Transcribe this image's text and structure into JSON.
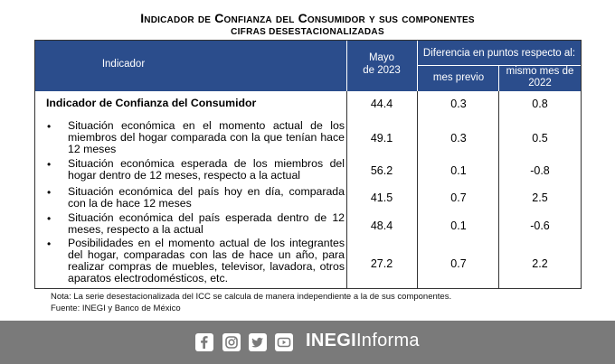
{
  "title": "Indicador de Confianza del Consumidor y sus componentes",
  "subtitle": "CIFRAS DESESTACIONALIZADAS",
  "table": {
    "headers": {
      "indicador": "Indicador",
      "mayo_line1": "Mayo",
      "mayo_line2": "de 2023",
      "diferencia": "Diferencia en puntos respecto al:",
      "mes_previo": "mes previo",
      "mismo_mes_line1": "mismo mes de",
      "mismo_mes_line2": "2022"
    },
    "rows": [
      {
        "label": "Indicador de Confianza del Consumidor",
        "bullet": "",
        "mayo": "44.4",
        "previo": "0.3",
        "mismo": "0.8"
      },
      {
        "label": "Situación económica en el momento actual de los miembros del hogar comparada con la que tenían hace 12 meses",
        "bullet": "•",
        "mayo": "49.1",
        "previo": "0.3",
        "mismo": "0.5"
      },
      {
        "label": "Situación económica esperada de los miembros del hogar dentro de 12 meses, respecto a la actual",
        "bullet": "•",
        "mayo": "56.2",
        "previo": "0.1",
        "mismo": "-0.8"
      },
      {
        "label": "Situación económica del país hoy en día, comparada con la de hace 12 meses",
        "bullet": "•",
        "mayo": "41.5",
        "previo": "0.7",
        "mismo": "2.5"
      },
      {
        "label": "Situación económica del país esperada dentro de 12 meses, respecto a la actual",
        "bullet": "•",
        "mayo": "48.4",
        "previo": "0.1",
        "mismo": "-0.6"
      },
      {
        "label": "Posibilidades en el momento actual de los integrantes del hogar, comparadas con las de hace un año, para realizar compras de muebles, televisor, lavadora, otros aparatos electrodomésticos, etc.",
        "bullet": "•",
        "mayo": "27.2",
        "previo": "0.7",
        "mismo": "2.2"
      }
    ]
  },
  "notes": {
    "nota": "Nota: La serie desestacionalizada del ICC se calcula de manera independiente a la de sus componentes.",
    "fuente": "Fuente: INEGI y Banco de México"
  },
  "footer": {
    "brand_bold": "INEGI",
    "brand_light": "Informa",
    "icons": [
      "facebook-icon",
      "instagram-icon",
      "twitter-icon",
      "youtube-icon"
    ],
    "bg_color": "#7a7a7a"
  },
  "colors": {
    "header_bg": "#2b4d8c"
  }
}
